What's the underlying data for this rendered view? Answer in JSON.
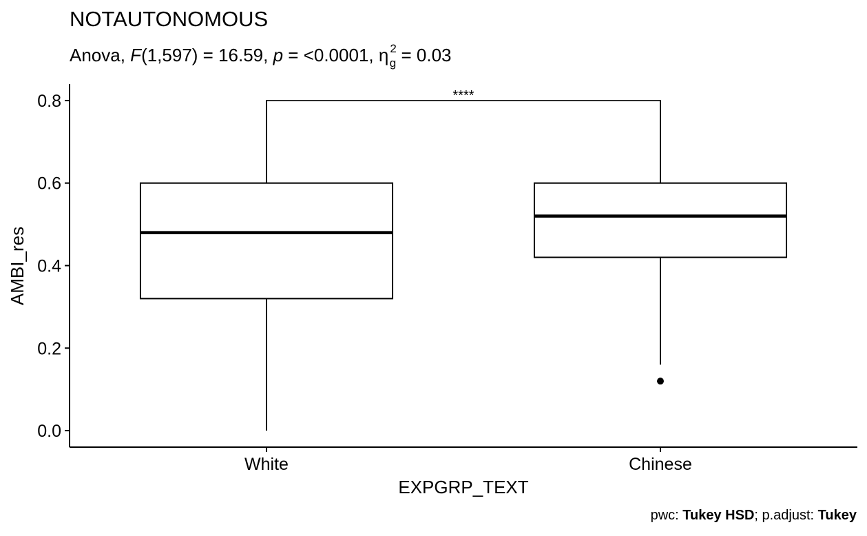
{
  "chart_data": {
    "type": "boxplot",
    "title": "NOTAUTONOMOUS",
    "subtitle": {
      "prefix": "Anova, ",
      "stat_symbol": "F",
      "stat_args": "(1,597) = 16.59, ",
      "p_symbol": "p",
      "p_value": " = <0.0001, ",
      "effect_symbol": "η",
      "effect_sub": "g",
      "effect_sup": "2",
      "effect_value": " = 0.03"
    },
    "xlabel": "EXPGRP_TEXT",
    "ylabel": "AMBI_res",
    "ylim": [
      -0.04,
      0.84
    ],
    "yticks": [
      0.0,
      0.2,
      0.4,
      0.6,
      0.8
    ],
    "ytick_labels": [
      "0.0",
      "0.2",
      "0.4",
      "0.6",
      "0.8"
    ],
    "categories": [
      "White",
      "Chinese"
    ],
    "boxes": [
      {
        "category": "White",
        "whisker_low": 0.0,
        "q1": 0.32,
        "median": 0.48,
        "q3": 0.6,
        "whisker_high": 0.8,
        "outliers": []
      },
      {
        "category": "Chinese",
        "whisker_low": 0.16,
        "q1": 0.42,
        "median": 0.52,
        "q3": 0.6,
        "whisker_high": 0.8,
        "outliers": [
          0.12
        ]
      }
    ],
    "comparison": {
      "from": "White",
      "to": "Chinese",
      "y": 0.8,
      "label": "****"
    },
    "caption": {
      "prefix": "pwc: ",
      "method": "Tukey HSD",
      "mid": "; p.adjust: ",
      "adjust": "Tukey"
    },
    "grid": false,
    "legend": "none"
  }
}
